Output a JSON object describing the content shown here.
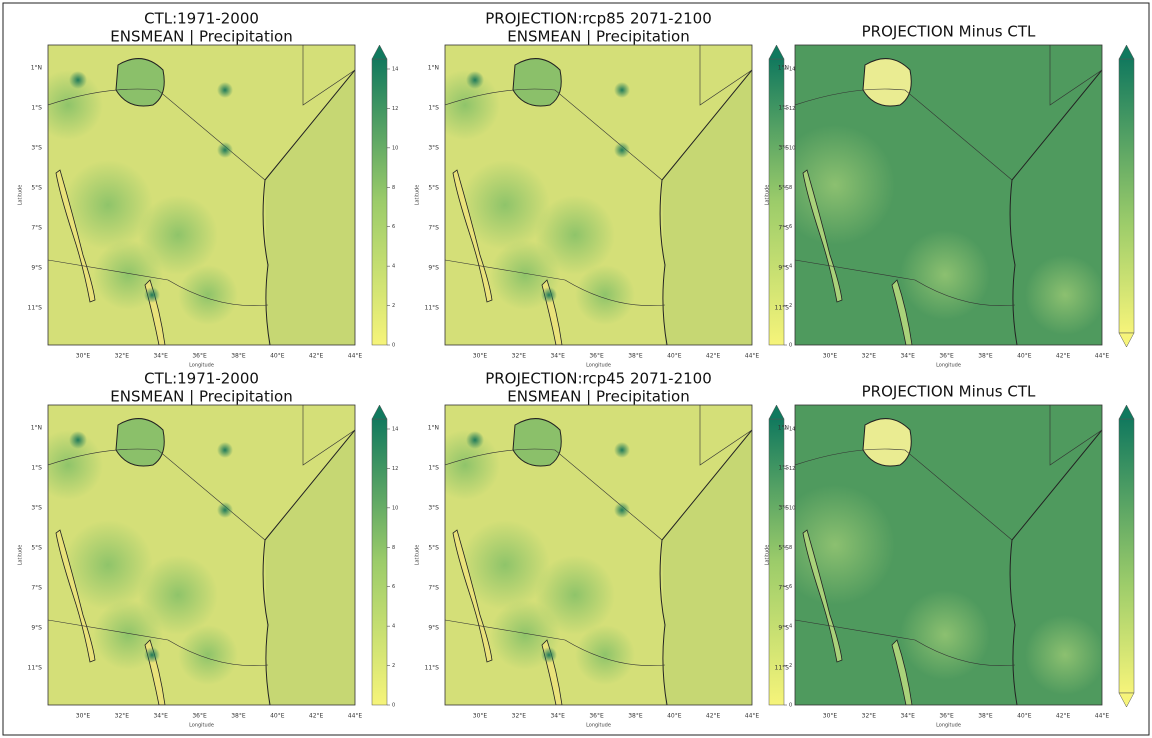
{
  "panels": [
    {
      "title": [
        "CTL:1971-2000",
        "ENSMEAN | Precipitation"
      ]
    },
    {
      "title": [
        "PROJECTION:rcp85 2071-2100",
        "ENSMEAN | Precipitation"
      ]
    },
    {
      "title": [
        "PROJECTION Minus CTL"
      ]
    },
    {
      "title": [
        "CTL:1971-2000",
        "ENSMEAN | Precipitation"
      ]
    },
    {
      "title": [
        "PROJECTION:rcp45 2071-2100",
        "ENSMEAN | Precipitation"
      ]
    },
    {
      "title": [
        "PROJECTION Minus CTL"
      ]
    }
  ],
  "lat_labels": [
    "1°N",
    "1°S",
    "3°S",
    "5°S",
    "7°S",
    "9°S",
    "11°S"
  ],
  "lon_labels": [
    "30°E",
    "32°E",
    "34°E",
    "36°E",
    "38°E",
    "40°E",
    "42°E",
    "44°E"
  ],
  "x_label": "Longitude",
  "y_label": "Latitude",
  "colorbar_ticks": [
    0,
    2,
    4,
    6,
    8,
    10,
    12,
    14
  ]
}
